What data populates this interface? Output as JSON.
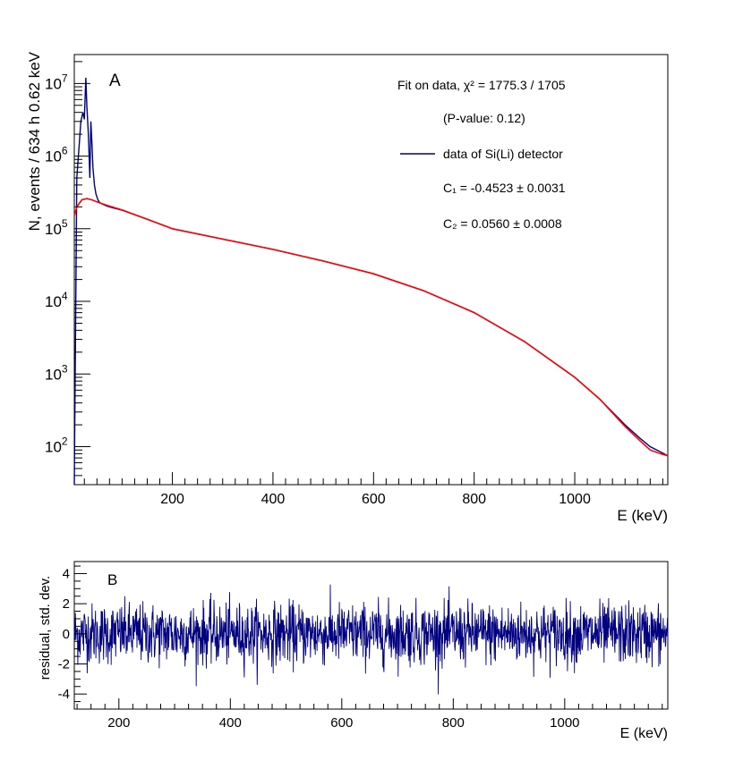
{
  "chart_data": [
    {
      "panel": "A",
      "type": "line",
      "scale": "log",
      "xlabel": "E (keV)",
      "ylabel": "N, events / 634 h 0.62 keV",
      "xlim": [
        5,
        1185
      ],
      "ylim": [
        30,
        25000000
      ],
      "xticks": [
        200,
        400,
        600,
        800,
        1000
      ],
      "yticks": [
        {
          "value": 100,
          "mantissa": "10",
          "exp": "2"
        },
        {
          "value": 1000,
          "mantissa": "10",
          "exp": "3"
        },
        {
          "value": 10000,
          "mantissa": "10",
          "exp": "4"
        },
        {
          "value": 100000,
          "mantissa": "10",
          "exp": "5"
        },
        {
          "value": 1000000,
          "mantissa": "10",
          "exp": "6"
        },
        {
          "value": 10000000,
          "mantissa": "10",
          "exp": "7"
        }
      ],
      "legend": {
        "line1": "Fit on data, χ² = 1775.3 / 1705",
        "line2": "(P-value: 0.12)",
        "entry": "data of Si(Li) detector",
        "c1": "C₁ = -0.4523 ± 0.0031",
        "c2": "C₂ = 0.0560 ± 0.0008",
        "placement": "top-right"
      },
      "series": [
        {
          "name": "data of Si(Li) detector",
          "color": "#000080",
          "x": [
            5,
            10,
            15,
            18,
            22,
            25,
            28,
            30,
            33,
            36,
            38,
            40,
            42,
            45,
            48,
            52,
            55,
            60,
            70,
            80,
            100,
            150,
            200,
            300,
            400,
            500,
            600,
            700,
            800,
            900,
            1000,
            1050,
            1100,
            1130,
            1150,
            1170,
            1185
          ],
          "y": [
            30,
            500000,
            1500000,
            3000000,
            4000000,
            3200000,
            12000000,
            5000000,
            2000000,
            500000,
            3000000,
            1500000,
            700000,
            400000,
            300000,
            250000,
            230000,
            220000,
            205000,
            195000,
            180000,
            135000,
            100000,
            72000,
            52000,
            36000,
            24000,
            14000,
            7000,
            2800,
            900,
            450,
            200,
            130,
            100,
            85,
            75
          ]
        },
        {
          "name": "",
          "color": "#ff0000",
          "x": [
            5,
            10,
            20,
            30,
            40,
            50,
            60,
            70,
            80,
            100,
            150,
            200,
            300,
            400,
            500,
            600,
            700,
            800,
            900,
            1000,
            1050,
            1100,
            1130,
            1150,
            1170,
            1185
          ],
          "y": [
            150000,
            200000,
            250000,
            260000,
            250000,
            235000,
            222000,
            210000,
            200000,
            182000,
            135000,
            100000,
            72000,
            52000,
            36000,
            24000,
            14000,
            7000,
            2800,
            900,
            450,
            190,
            120,
            90,
            80,
            75
          ]
        }
      ]
    },
    {
      "panel": "B",
      "type": "line",
      "xlabel": "E (keV)",
      "ylabel": "residual, std. dev.",
      "xlim": [
        120,
        1185
      ],
      "ylim": [
        -5,
        4.8
      ],
      "xticks": [
        200,
        400,
        600,
        800,
        1000
      ],
      "yticks": [
        -4,
        -2,
        0,
        2,
        4
      ],
      "series": [
        {
          "name": "",
          "color": "#000080",
          "description_free": true,
          "x_start": 120,
          "x_end": 1185,
          "n_points": 1705,
          "mean": 0,
          "std": 1
        }
      ]
    }
  ]
}
